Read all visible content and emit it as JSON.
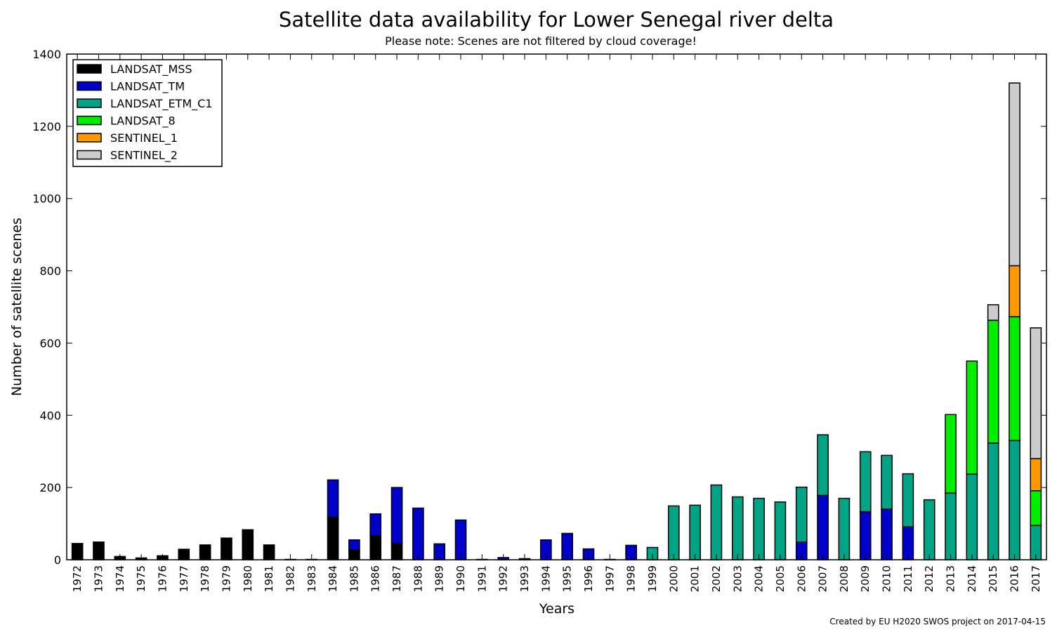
{
  "chart_data": {
    "type": "bar",
    "stacked": true,
    "title": "Satellite data availability for Lower Senegal river delta",
    "subtitle": "Please note: Scenes are not filtered by cloud coverage!",
    "xlabel": "Years",
    "ylabel": "Number of satellite scenes",
    "ylim": [
      0,
      1400
    ],
    "yticks": [
      0,
      200,
      400,
      600,
      800,
      1000,
      1200,
      1400
    ],
    "grid": false,
    "legend_position": "top-left",
    "footer": "Created by EU H2020 SWOS project on 2017-04-15",
    "categories": [
      "1972",
      "1973",
      "1974",
      "1975",
      "1976",
      "1977",
      "1978",
      "1979",
      "1980",
      "1981",
      "1982",
      "1983",
      "1984",
      "1985",
      "1986",
      "1987",
      "1988",
      "1989",
      "1990",
      "1991",
      "1992",
      "1993",
      "1994",
      "1995",
      "1996",
      "1997",
      "1998",
      "1999",
      "2000",
      "2001",
      "2002",
      "2003",
      "2004",
      "2005",
      "2006",
      "2007",
      "2008",
      "2009",
      "2010",
      "2011",
      "2012",
      "2013",
      "2014",
      "2015",
      "2016",
      "2017"
    ],
    "series": [
      {
        "name": "LANDSAT_MSS",
        "color": "#000000",
        "values": [
          45,
          49,
          9,
          5,
          11,
          29,
          41,
          60,
          83,
          41,
          1,
          1,
          118,
          27,
          67,
          45,
          0,
          0,
          0,
          0,
          0,
          0,
          0,
          0,
          0,
          0,
          0,
          0,
          0,
          0,
          0,
          0,
          0,
          0,
          0,
          0,
          0,
          0,
          0,
          0,
          0,
          0,
          0,
          0,
          0,
          0
        ]
      },
      {
        "name": "LANDSAT_TM",
        "color": "#0000cc",
        "values": [
          0,
          0,
          0,
          0,
          0,
          0,
          0,
          0,
          0,
          0,
          0,
          0,
          103,
          28,
          60,
          155,
          143,
          44,
          110,
          1,
          6,
          3,
          55,
          73,
          30,
          1,
          40,
          0,
          0,
          0,
          0,
          0,
          0,
          0,
          49,
          178,
          0,
          133,
          140,
          91,
          0,
          0,
          0,
          0,
          0,
          0
        ]
      },
      {
        "name": "LANDSAT_ETM_C1",
        "color": "#00a383",
        "values": [
          0,
          0,
          0,
          0,
          0,
          0,
          0,
          0,
          0,
          0,
          0,
          0,
          0,
          0,
          0,
          0,
          0,
          0,
          0,
          0,
          0,
          0,
          0,
          0,
          0,
          0,
          0,
          34,
          149,
          151,
          207,
          174,
          170,
          160,
          152,
          168,
          170,
          166,
          149,
          147,
          166,
          185,
          237,
          323,
          330,
          95
        ]
      },
      {
        "name": "LANDSAT_8",
        "color": "#00ee00",
        "values": [
          0,
          0,
          0,
          0,
          0,
          0,
          0,
          0,
          0,
          0,
          0,
          0,
          0,
          0,
          0,
          0,
          0,
          0,
          0,
          0,
          0,
          0,
          0,
          0,
          0,
          0,
          0,
          0,
          0,
          0,
          0,
          0,
          0,
          0,
          0,
          0,
          0,
          0,
          0,
          0,
          0,
          217,
          313,
          340,
          343,
          96
        ]
      },
      {
        "name": "SENTINEL_1",
        "color": "#ff9900",
        "values": [
          0,
          0,
          0,
          0,
          0,
          0,
          0,
          0,
          0,
          0,
          0,
          0,
          0,
          0,
          0,
          0,
          0,
          0,
          0,
          0,
          0,
          0,
          0,
          0,
          0,
          0,
          0,
          0,
          0,
          0,
          0,
          0,
          0,
          0,
          0,
          0,
          0,
          0,
          0,
          0,
          0,
          0,
          0,
          0,
          141,
          89
        ]
      },
      {
        "name": "SENTINEL_2",
        "color": "#cccccc",
        "values": [
          0,
          0,
          0,
          0,
          0,
          0,
          0,
          0,
          0,
          0,
          0,
          0,
          0,
          0,
          0,
          0,
          0,
          0,
          0,
          0,
          0,
          0,
          0,
          0,
          0,
          0,
          0,
          0,
          0,
          0,
          0,
          0,
          0,
          0,
          0,
          0,
          0,
          0,
          0,
          0,
          0,
          0,
          0,
          43,
          506,
          362
        ]
      }
    ]
  }
}
